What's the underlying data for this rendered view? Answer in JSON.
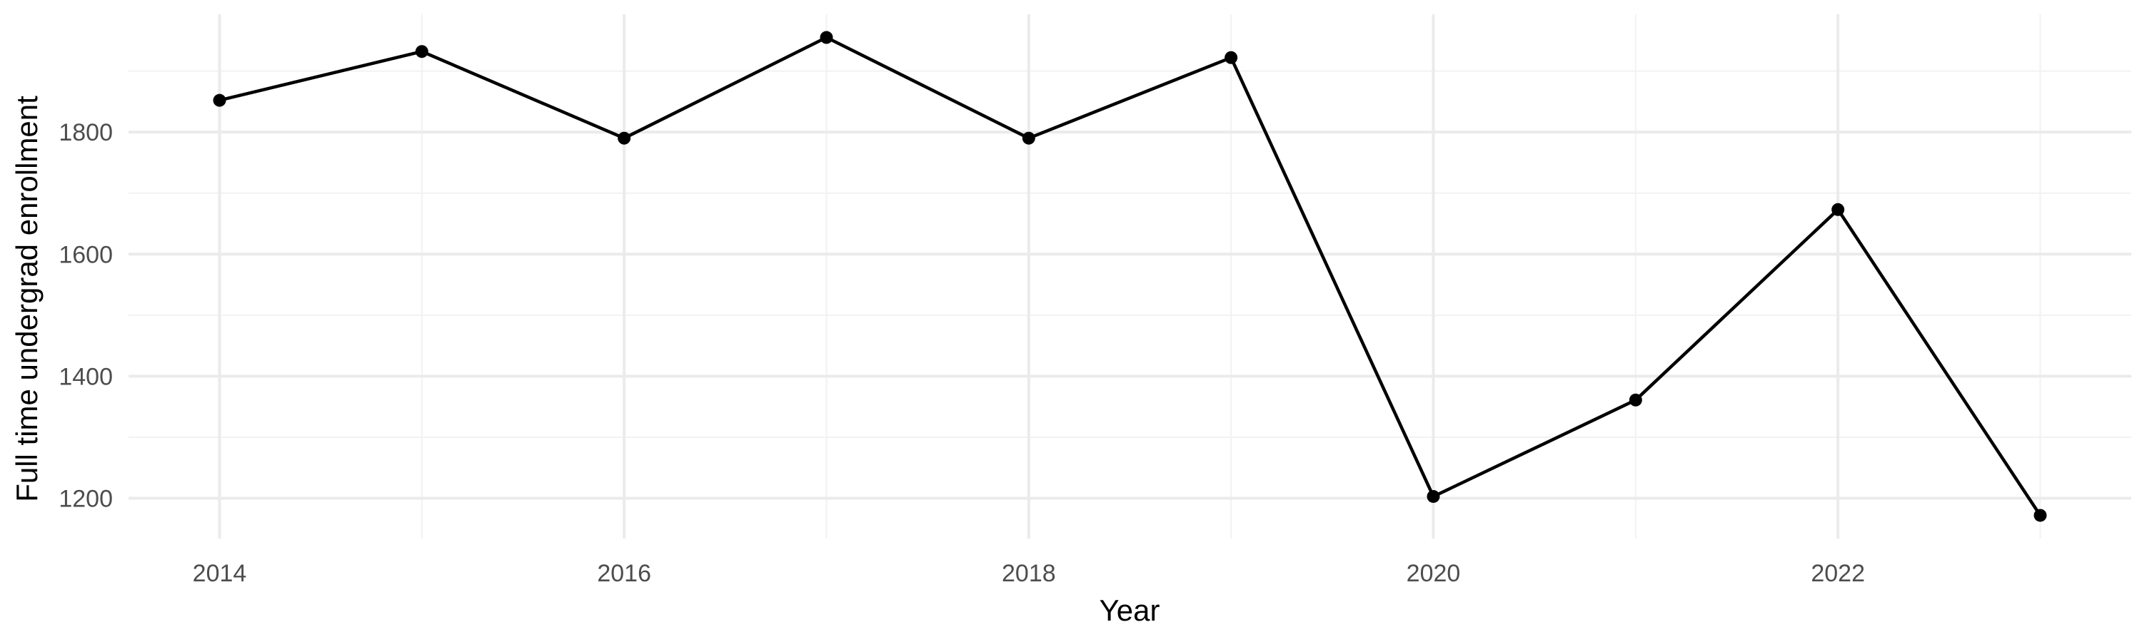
{
  "chart_data": {
    "type": "line",
    "title": "",
    "xlabel": "Year",
    "ylabel": "Full time undergrad enrollment",
    "x": [
      2014,
      2015,
      2016,
      2017,
      2018,
      2019,
      2020,
      2021,
      2022,
      2023
    ],
    "series": [
      {
        "values": [
          1852,
          1932,
          1790,
          1955,
          1790,
          1922,
          1203,
          1361,
          1673,
          1172
        ],
        "color": "#000000"
      }
    ],
    "x_ticks": [
      "2014",
      "2016",
      "2018",
      "2020",
      "2022"
    ],
    "y_ticks": [
      "1200",
      "1400",
      "1600",
      "1800"
    ],
    "xlim": [
      2013.55,
      2023.45
    ],
    "ylim": [
      1134,
      1993
    ],
    "grid": true,
    "legend": "none"
  }
}
